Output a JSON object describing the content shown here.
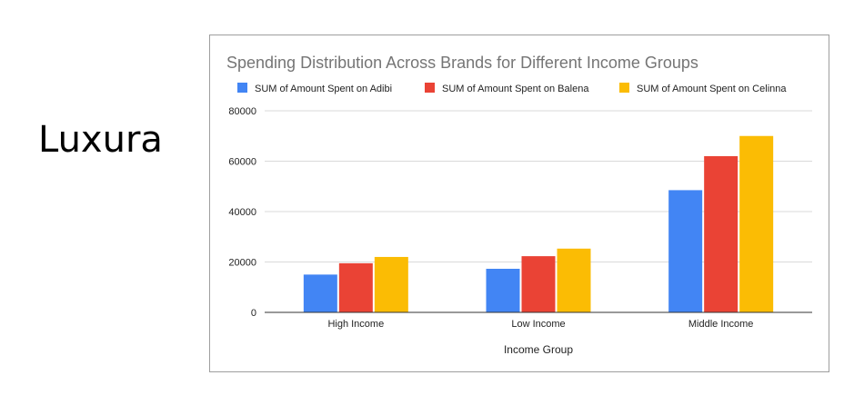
{
  "brand": {
    "name": "Luxura"
  },
  "chart_data": {
    "type": "bar",
    "title": "Spending Distribution Across Brands for Different Income Groups",
    "xlabel": "Income Group",
    "ylabel": "",
    "categories": [
      "High Income",
      "Low Income",
      "Middle Income"
    ],
    "series": [
      {
        "name": "SUM of Amount Spent on Adibi",
        "color": "#4285f4",
        "values": [
          15000,
          17300,
          48500
        ]
      },
      {
        "name": "SUM of Amount Spent on Balena",
        "color": "#ea4335",
        "values": [
          19500,
          22300,
          62000
        ]
      },
      {
        "name": "SUM of Amount Spent on Celinna",
        "color": "#fbbc04",
        "values": [
          22000,
          25300,
          70000
        ]
      }
    ],
    "ylim": [
      0,
      80000
    ],
    "yticks": [
      0,
      20000,
      40000,
      60000,
      80000
    ],
    "ytick_labels": [
      "0",
      "20000",
      "40000",
      "60000",
      "80000"
    ],
    "grid": true,
    "legend_position": "top"
  }
}
